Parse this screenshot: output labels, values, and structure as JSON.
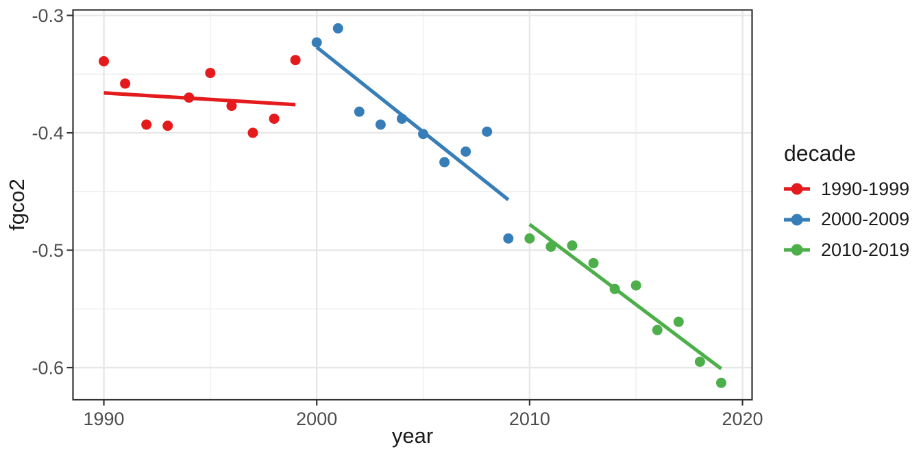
{
  "colors": {
    "background": "#FFFFFF",
    "panel_border": "#333333",
    "grid_major": "#E7E7E7",
    "grid_minor": "#EDEDED",
    "tick_mark": "#333333",
    "tick_label_text": "#4D4D4D",
    "title_text": "#1A1A1A",
    "series_red": "#E41A1C",
    "series_blue": "#377EB8",
    "series_green": "#4DAF4A"
  },
  "chart_data": {
    "type": "scatter",
    "title": "",
    "xlabel": "year",
    "ylabel": "fgco2",
    "legend_title": "decade",
    "legend_position": "right",
    "grid": true,
    "x_domain": [
      1988.55,
      2020.45
    ],
    "y_domain": [
      -0.2953,
      -0.6274
    ],
    "x_ticks": [
      1990,
      2000,
      2010,
      2020
    ],
    "x_tick_labels": [
      "1990",
      "2000",
      "2010",
      "2020"
    ],
    "x_minor_ticks": [
      1995,
      2005,
      2015
    ],
    "y_ticks": [
      -0.3,
      -0.4,
      -0.5,
      -0.6
    ],
    "y_tick_labels": [
      "-0.3",
      "-0.4",
      "-0.5",
      "-0.6"
    ],
    "y_minor_ticks": [
      -0.35,
      -0.45,
      -0.55
    ],
    "series": [
      {
        "name": "1990-1999",
        "color": "#E41A1C",
        "x": [
          1990,
          1991,
          1992,
          1993,
          1994,
          1995,
          1996,
          1997,
          1998,
          1999
        ],
        "y": [
          -0.339,
          -0.358,
          -0.393,
          -0.394,
          -0.37,
          -0.349,
          -0.377,
          -0.4,
          -0.388,
          -0.338
        ],
        "trend": {
          "x1": 1990,
          "y1": -0.366,
          "x2": 1999,
          "y2": -0.376
        }
      },
      {
        "name": "2000-2009",
        "color": "#377EB8",
        "x": [
          2000,
          2001,
          2002,
          2003,
          2004,
          2005,
          2006,
          2007,
          2008,
          2009
        ],
        "y": [
          -0.323,
          -0.311,
          -0.382,
          -0.393,
          -0.388,
          -0.401,
          -0.425,
          -0.416,
          -0.399,
          -0.49
        ],
        "trend": {
          "x1": 2000,
          "y1": -0.327,
          "x2": 2009,
          "y2": -0.457
        }
      },
      {
        "name": "2010-2019",
        "color": "#4DAF4A",
        "x": [
          2010,
          2011,
          2012,
          2013,
          2014,
          2015,
          2016,
          2017,
          2018,
          2019
        ],
        "y": [
          -0.49,
          -0.497,
          -0.496,
          -0.511,
          -0.533,
          -0.53,
          -0.568,
          -0.561,
          -0.595,
          -0.613
        ],
        "trend": {
          "x1": 2010,
          "y1": -0.478,
          "x2": 2019,
          "y2": -0.601
        }
      }
    ]
  }
}
